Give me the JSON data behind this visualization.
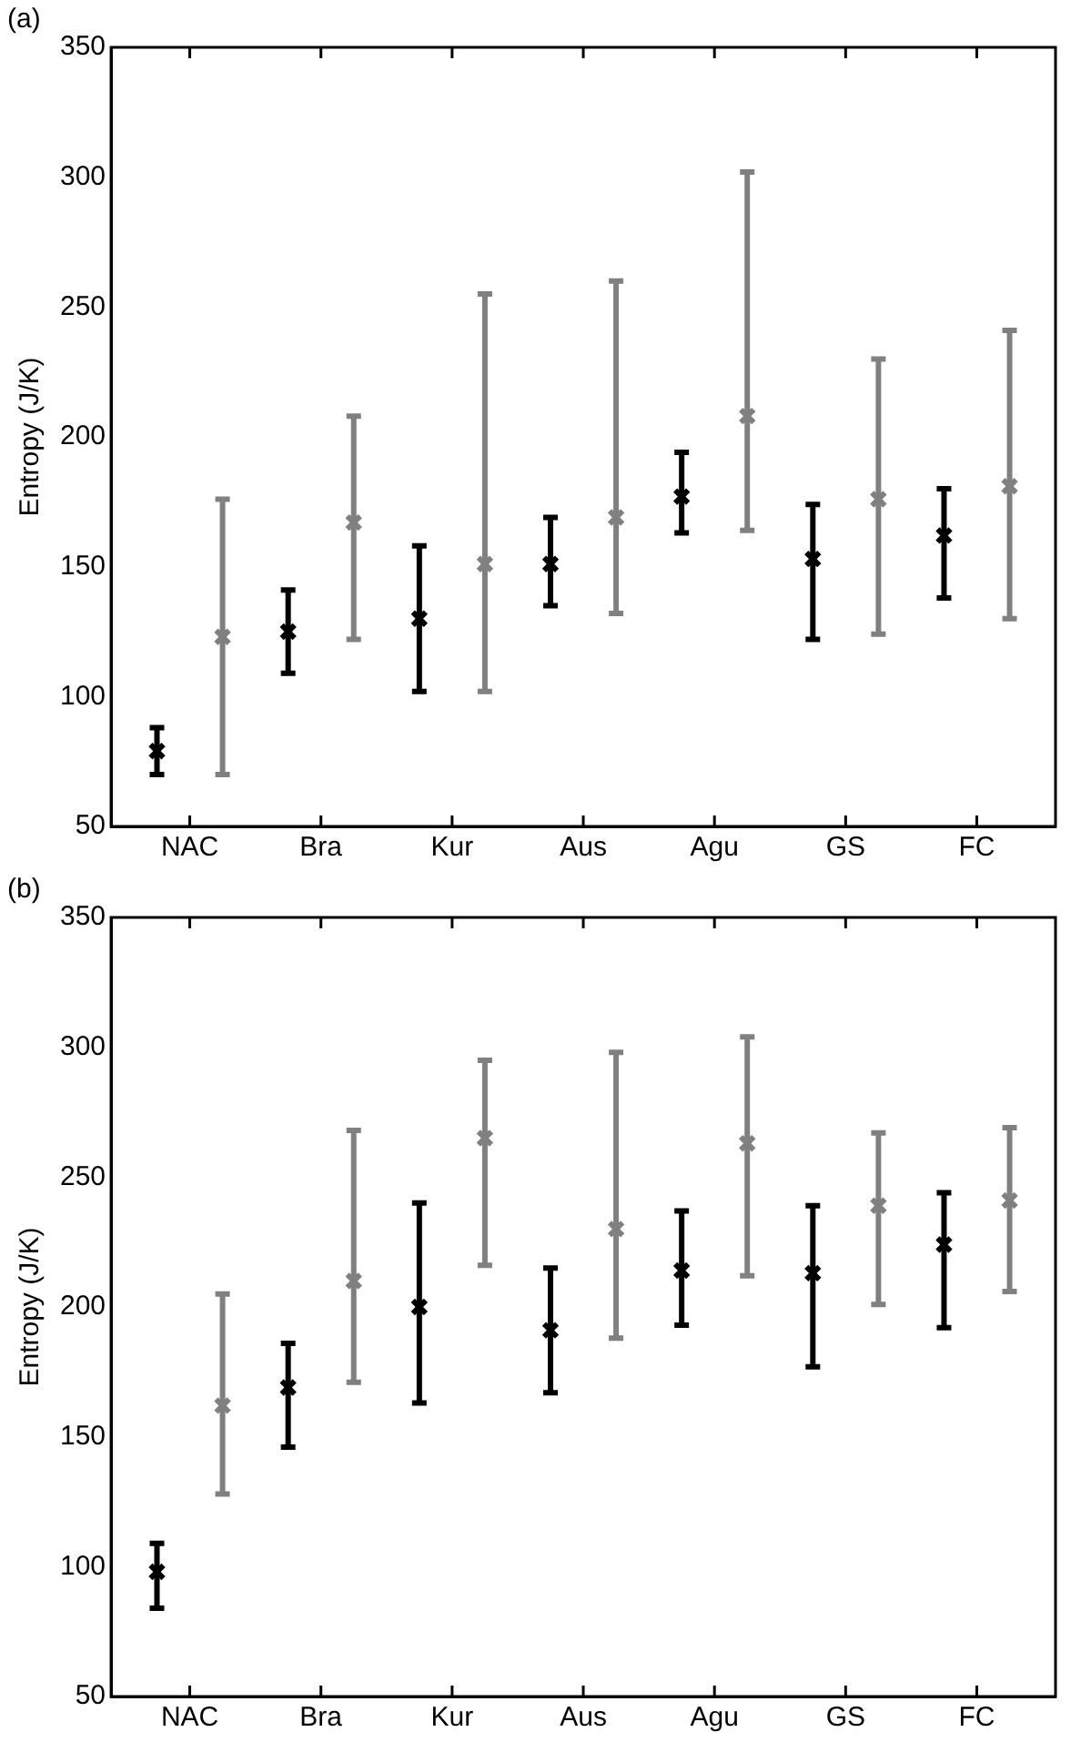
{
  "chart_data": [
    {
      "type": "scatter",
      "title": "(a)",
      "ylabel": "Entropy (J/K)",
      "categories": [
        "NAC",
        "Bra",
        "Kur",
        "Aus",
        "Agu",
        "GS",
        "FC"
      ],
      "ylim": [
        50,
        350
      ],
      "yticks": [
        50,
        100,
        150,
        200,
        250,
        300,
        350
      ],
      "grid": false,
      "legend": false,
      "marker": "cross",
      "series": [
        {
          "color": "#000000",
          "values": [
            79,
            125,
            130,
            151,
            177,
            153,
            162
          ],
          "errors": [
            [
              70,
              88
            ],
            [
              109,
              141
            ],
            [
              102,
              158
            ],
            [
              135,
              169
            ],
            [
              163,
              194
            ],
            [
              122,
              174
            ],
            [
              138,
              180
            ]
          ]
        },
        {
          "color": "#808080",
          "values": [
            123,
            167,
            151,
            169,
            208,
            176,
            181
          ],
          "errors": [
            [
              70,
              176
            ],
            [
              122,
              208
            ],
            [
              102,
              255
            ],
            [
              132,
              260
            ],
            [
              164,
              302
            ],
            [
              124,
              230
            ],
            [
              130,
              241
            ]
          ]
        }
      ]
    },
    {
      "type": "scatter",
      "title": "(b)",
      "ylabel": "Entropy (J/K)",
      "categories": [
        "NAC",
        "Bra",
        "Kur",
        "Aus",
        "Agu",
        "GS",
        "FC"
      ],
      "ylim": [
        50,
        350
      ],
      "yticks": [
        50,
        100,
        150,
        200,
        250,
        300,
        350
      ],
      "grid": false,
      "legend": false,
      "marker": "cross",
      "series": [
        {
          "color": "#000000",
          "values": [
            98,
            169,
            200,
            191,
            214,
            213,
            224
          ],
          "errors": [
            [
              84,
              109
            ],
            [
              146,
              186
            ],
            [
              163,
              240
            ],
            [
              167,
              215
            ],
            [
              193,
              237
            ],
            [
              177,
              239
            ],
            [
              192,
              244
            ]
          ]
        },
        {
          "color": "#808080",
          "values": [
            162,
            210,
            265,
            230,
            263,
            239,
            241
          ],
          "errors": [
            [
              128,
              205
            ],
            [
              171,
              268
            ],
            [
              216,
              295
            ],
            [
              188,
              298
            ],
            [
              212,
              304
            ],
            [
              201,
              267
            ],
            [
              206,
              269
            ]
          ]
        }
      ]
    }
  ]
}
